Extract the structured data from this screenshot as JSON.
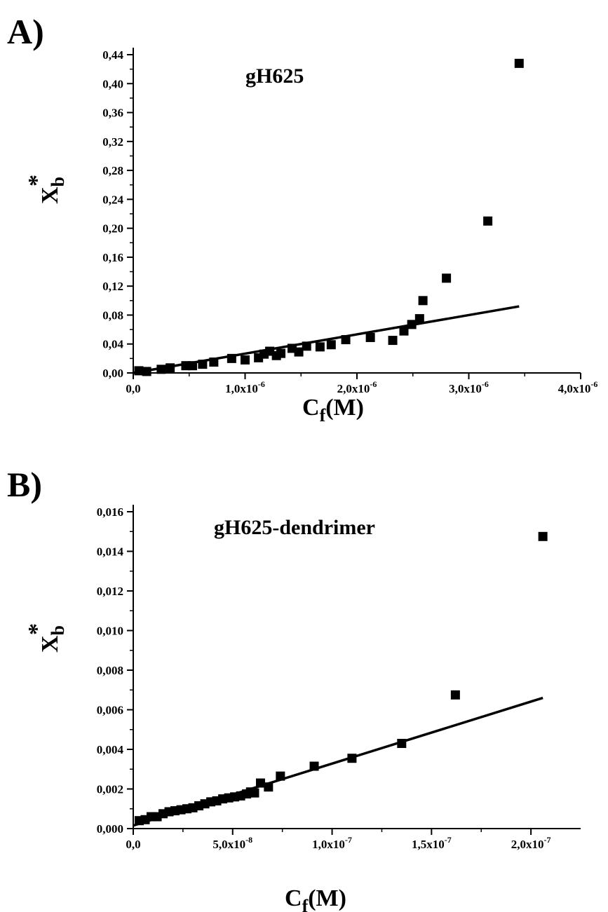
{
  "chart_data": [
    {
      "type": "scatter",
      "panel_label": "A)",
      "title": "gH625",
      "xlabel": {
        "main": "C",
        "sub": "f",
        "tail": "(M)"
      },
      "ylabel": {
        "main": "X",
        "sub": "b",
        "sup": "*"
      },
      "xlim": [
        0,
        4e-06
      ],
      "ylim": [
        0,
        0.44
      ],
      "x_ticks": [
        {
          "value": 0,
          "mantissa": "0,0",
          "exponent": ""
        },
        {
          "value": 1e-06,
          "mantissa": "1,0x10",
          "exponent": "-6"
        },
        {
          "value": 2e-06,
          "mantissa": "2,0x10",
          "exponent": "-6"
        },
        {
          "value": 3e-06,
          "mantissa": "3,0x10",
          "exponent": "-6"
        },
        {
          "value": 4e-06,
          "mantissa": "4,0x10",
          "exponent": "-6"
        }
      ],
      "y_ticks": [
        {
          "value": 0.0,
          "label": "0,00"
        },
        {
          "value": 0.04,
          "label": "0,04"
        },
        {
          "value": 0.08,
          "label": "0,08"
        },
        {
          "value": 0.12,
          "label": "0,12"
        },
        {
          "value": 0.16,
          "label": "0,16"
        },
        {
          "value": 0.2,
          "label": "0,20"
        },
        {
          "value": 0.24,
          "label": "0,24"
        },
        {
          "value": 0.28,
          "label": "0,28"
        },
        {
          "value": 0.32,
          "label": "0,32"
        },
        {
          "value": 0.36,
          "label": "0,36"
        },
        {
          "value": 0.4,
          "label": "0,40"
        },
        {
          "value": 0.44,
          "label": "0,44"
        }
      ],
      "points": [
        [
          5e-08,
          0.003
        ],
        [
          1.2e-07,
          0.002
        ],
        [
          2.5e-07,
          0.005
        ],
        [
          3.3e-07,
          0.007
        ],
        [
          4.7e-07,
          0.01
        ],
        [
          5.3e-07,
          0.01
        ],
        [
          6.2e-07,
          0.012
        ],
        [
          7.2e-07,
          0.015
        ],
        [
          8.8e-07,
          0.02
        ],
        [
          1e-06,
          0.018
        ],
        [
          1.12e-06,
          0.021
        ],
        [
          1.17e-06,
          0.026
        ],
        [
          1.22e-06,
          0.03
        ],
        [
          1.28e-06,
          0.024
        ],
        [
          1.32e-06,
          0.027
        ],
        [
          1.42e-06,
          0.034
        ],
        [
          1.48e-06,
          0.029
        ],
        [
          1.55e-06,
          0.037
        ],
        [
          1.67e-06,
          0.036
        ],
        [
          1.77e-06,
          0.039
        ],
        [
          1.9e-06,
          0.046
        ],
        [
          2.12e-06,
          0.049
        ],
        [
          2.32e-06,
          0.045
        ],
        [
          2.42e-06,
          0.058
        ],
        [
          2.49e-06,
          0.067
        ],
        [
          2.56e-06,
          0.075
        ],
        [
          2.59e-06,
          0.1
        ],
        [
          2.8e-06,
          0.131
        ],
        [
          3.17e-06,
          0.21
        ],
        [
          3.45e-06,
          0.428
        ]
      ],
      "fit_line": {
        "x": [
          0,
          3.45e-06
        ],
        "y": [
          0.0,
          0.092
        ]
      }
    },
    {
      "type": "scatter",
      "panel_label": "B)",
      "title": "gH625-dendrimer",
      "xlabel": {
        "main": "C",
        "sub": "f",
        "tail": "(M)"
      },
      "ylabel": {
        "main": "X",
        "sub": "b",
        "sup": "*"
      },
      "xlim": [
        0,
        2.25e-07
      ],
      "ylim": [
        0,
        0.016
      ],
      "x_ticks": [
        {
          "value": 0,
          "mantissa": "0,0",
          "exponent": ""
        },
        {
          "value": 5e-08,
          "mantissa": "5,0x10",
          "exponent": "-8"
        },
        {
          "value": 1e-07,
          "mantissa": "1,0x10",
          "exponent": "-7"
        },
        {
          "value": 1.5e-07,
          "mantissa": "1,5x10",
          "exponent": "-7"
        },
        {
          "value": 2e-07,
          "mantissa": "2,0x10",
          "exponent": "-7"
        }
      ],
      "y_ticks": [
        {
          "value": 0.0,
          "label": "0,000"
        },
        {
          "value": 0.002,
          "label": "0,002"
        },
        {
          "value": 0.004,
          "label": "0,004"
        },
        {
          "value": 0.006,
          "label": "0,006"
        },
        {
          "value": 0.008,
          "label": "0,008"
        },
        {
          "value": 0.01,
          "label": "0,010"
        },
        {
          "value": 0.012,
          "label": "0,012"
        },
        {
          "value": 0.014,
          "label": "0,014"
        },
        {
          "value": 0.016,
          "label": "0,016"
        }
      ],
      "points": [
        [
          3e-09,
          0.0004
        ],
        [
          6e-09,
          0.00045
        ],
        [
          9e-09,
          0.0006
        ],
        [
          1.2e-08,
          0.0006
        ],
        [
          1.5e-08,
          0.00075
        ],
        [
          1.8e-08,
          0.00085
        ],
        [
          2.1e-08,
          0.0009
        ],
        [
          2.4e-08,
          0.00095
        ],
        [
          2.7e-08,
          0.001
        ],
        [
          3e-08,
          0.00105
        ],
        [
          3.3e-08,
          0.00115
        ],
        [
          3.6e-08,
          0.00125
        ],
        [
          3.9e-08,
          0.00135
        ],
        [
          4.2e-08,
          0.0014
        ],
        [
          4.5e-08,
          0.0015
        ],
        [
          4.8e-08,
          0.00155
        ],
        [
          5.1e-08,
          0.0016
        ],
        [
          5.4e-08,
          0.00165
        ],
        [
          5.7e-08,
          0.00175
        ],
        [
          5.9e-08,
          0.00185
        ],
        [
          6.1e-08,
          0.0018
        ],
        [
          6.4e-08,
          0.0023
        ],
        [
          6.8e-08,
          0.0021
        ],
        [
          7.4e-08,
          0.00265
        ],
        [
          9.1e-08,
          0.00315
        ],
        [
          1.1e-07,
          0.00355
        ],
        [
          1.35e-07,
          0.0043
        ],
        [
          1.62e-07,
          0.00675
        ],
        [
          2.06e-07,
          0.01475
        ]
      ],
      "fit_line": {
        "x": [
          0,
          2.06e-07
        ],
        "y": [
          0.00015,
          0.0066
        ]
      }
    }
  ]
}
